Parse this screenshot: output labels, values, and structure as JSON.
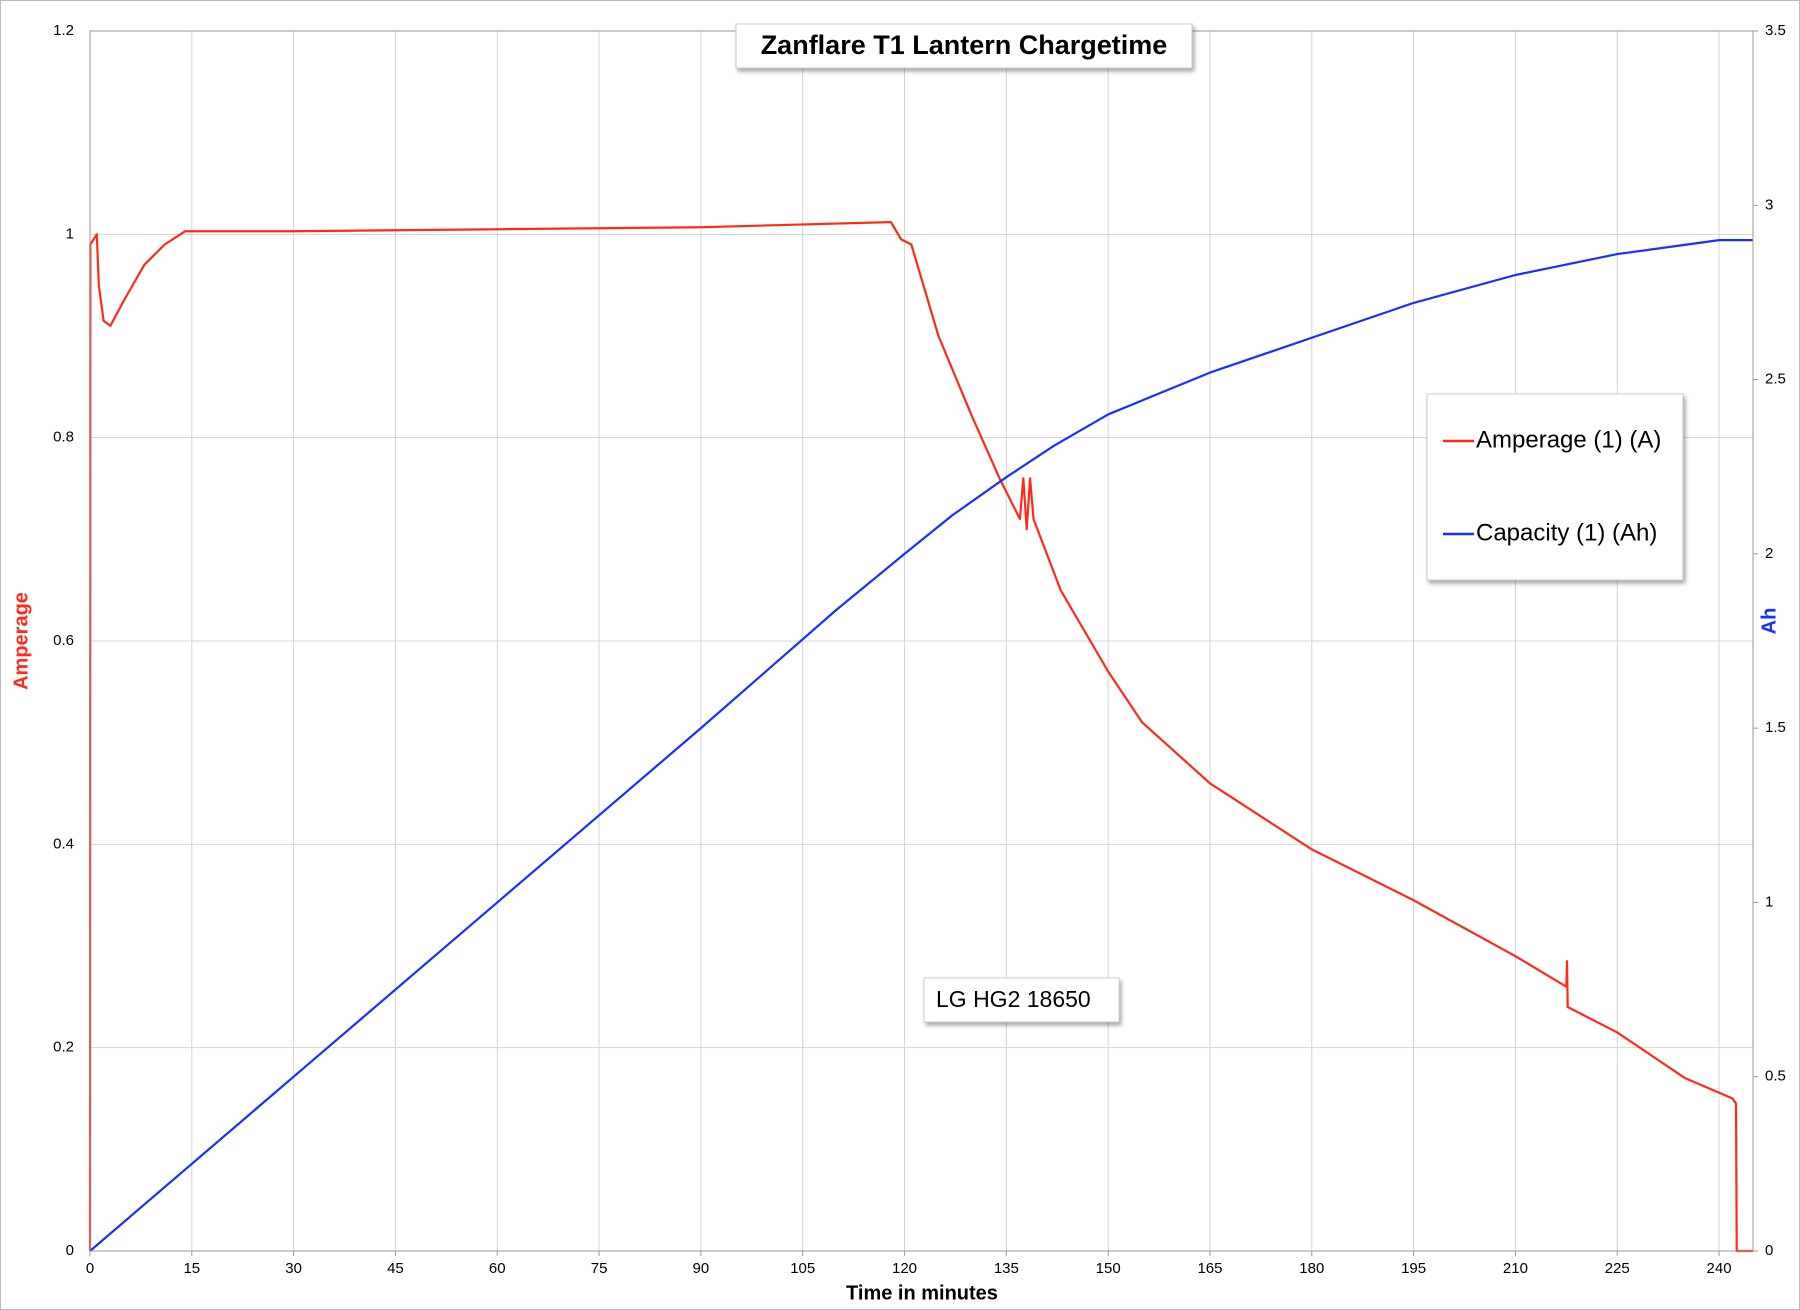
{
  "chart_data": {
    "type": "line",
    "title": "Zanflare T1 Lantern Chargetime",
    "xlabel": "Time in minutes",
    "ylabel": "Amperage",
    "y2label": "Ah",
    "annotations": [
      "LG HG2 18650"
    ],
    "xlim": [
      0,
      245
    ],
    "xticks": [
      0,
      15,
      30,
      45,
      60,
      75,
      90,
      105,
      120,
      135,
      150,
      165,
      180,
      195,
      210,
      225,
      240
    ],
    "ylim": [
      0,
      1.2
    ],
    "yticks": [
      0,
      0.2,
      0.4,
      0.6,
      0.8,
      1,
      1.2
    ],
    "y2lim": [
      0,
      3.5
    ],
    "y2ticks": [
      0,
      0.5,
      1,
      1.5,
      2,
      2.5,
      3,
      3.5
    ],
    "grid": true,
    "legend": "right",
    "series": [
      {
        "name": "Amperage (1) (A)",
        "color": "#ff2a1a",
        "x": [
          0,
          0.05,
          1,
          1.3,
          2,
          3,
          5,
          8,
          11,
          14,
          30,
          60,
          90,
          118,
          119.5,
          121,
          125,
          130,
          134,
          137,
          137.5,
          138,
          138.5,
          139,
          143,
          150,
          155,
          165,
          180,
          195,
          210,
          217.5,
          217.6,
          217.7,
          225,
          235,
          242,
          242.5,
          242.6,
          245
        ],
        "values": [
          0,
          0.99,
          1.0,
          0.95,
          0.915,
          0.91,
          0.935,
          0.97,
          0.99,
          1.003,
          1.003,
          1.005,
          1.007,
          1.012,
          0.995,
          0.99,
          0.9,
          0.82,
          0.76,
          0.72,
          0.76,
          0.71,
          0.76,
          0.72,
          0.65,
          0.57,
          0.52,
          0.46,
          0.395,
          0.345,
          0.29,
          0.26,
          0.285,
          0.24,
          0.215,
          0.17,
          0.15,
          0.145,
          0,
          0
        ]
      },
      {
        "name": "Capacity (1) (Ah)",
        "color": "#1a2eff",
        "axis": "y2",
        "x": [
          0,
          30,
          60,
          90,
          110,
          120,
          127,
          135,
          142,
          150,
          165,
          180,
          195,
          210,
          225,
          240,
          245
        ],
        "values": [
          0,
          0.5,
          1.0,
          1.5,
          1.84,
          2.0,
          2.11,
          2.22,
          2.31,
          2.4,
          2.52,
          2.62,
          2.72,
          2.8,
          2.86,
          2.9,
          2.9
        ]
      }
    ]
  }
}
